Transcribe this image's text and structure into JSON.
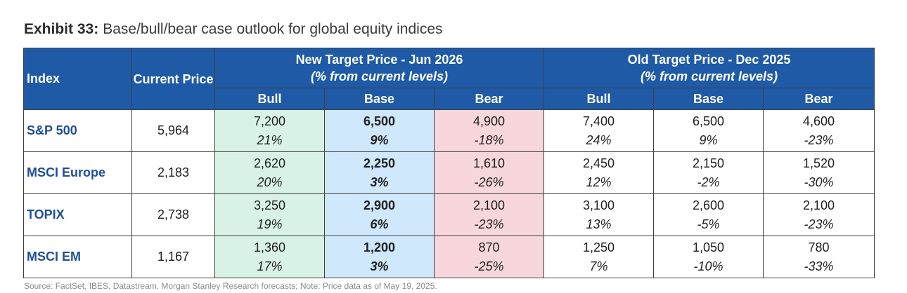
{
  "exhibit_label": "Exhibit 33:",
  "title": "Base/bull/bear case outlook for global equity indices",
  "headers": {
    "index": "Index",
    "current_price": "Current Price",
    "new_group": "New Target Price - Jun 2026",
    "new_group_sub": "(% from current levels)",
    "old_group": "Old Target Price - Dec 2025",
    "old_group_sub": "(% from current levels)",
    "bull": "Bull",
    "base": "Base",
    "bear": "Bear"
  },
  "rows": [
    {
      "index": "S&P 500",
      "current": "5,964",
      "new_bull": "7,200",
      "new_bull_pct": "21%",
      "new_base": "6,500",
      "new_base_pct": "9%",
      "new_bear": "4,900",
      "new_bear_pct": "-18%",
      "old_bull": "7,400",
      "old_bull_pct": "24%",
      "old_base": "6,500",
      "old_base_pct": "9%",
      "old_bear": "4,600",
      "old_bear_pct": "-23%"
    },
    {
      "index": "MSCI Europe",
      "current": "2,183",
      "new_bull": "2,620",
      "new_bull_pct": "20%",
      "new_base": "2,250",
      "new_base_pct": "3%",
      "new_bear": "1,610",
      "new_bear_pct": "-26%",
      "old_bull": "2,450",
      "old_bull_pct": "12%",
      "old_base": "2,150",
      "old_base_pct": "-2%",
      "old_bear": "1,520",
      "old_bear_pct": "-30%"
    },
    {
      "index": "TOPIX",
      "current": "2,738",
      "new_bull": "3,250",
      "new_bull_pct": "19%",
      "new_base": "2,900",
      "new_base_pct": "6%",
      "new_bear": "2,100",
      "new_bear_pct": "-23%",
      "old_bull": "3,100",
      "old_bull_pct": "13%",
      "old_base": "2,600",
      "old_base_pct": "-5%",
      "old_bear": "2,100",
      "old_bear_pct": "-23%"
    },
    {
      "index": "MSCI EM",
      "current": "1,167",
      "new_bull": "1,360",
      "new_bull_pct": "17%",
      "new_base": "1,200",
      "new_base_pct": "3%",
      "new_bear": "870",
      "new_bear_pct": "-25%",
      "old_bull": "1,250",
      "old_bull_pct": "7%",
      "old_base": "1,050",
      "old_base_pct": "-10%",
      "old_bear": "780",
      "old_bear_pct": "-33%"
    }
  ],
  "source": "Source: FactSet, IBES, Datastream, Morgan Stanley Research forecasts; Note: Price data as of May 19, 2025.",
  "colors": {
    "header_blue": "#1f5aa6",
    "bull_fill": "#d8f3e6",
    "base_fill": "#cfe8fb",
    "bear_fill": "#f7d6dc",
    "index_text": "#1f4e9a"
  }
}
